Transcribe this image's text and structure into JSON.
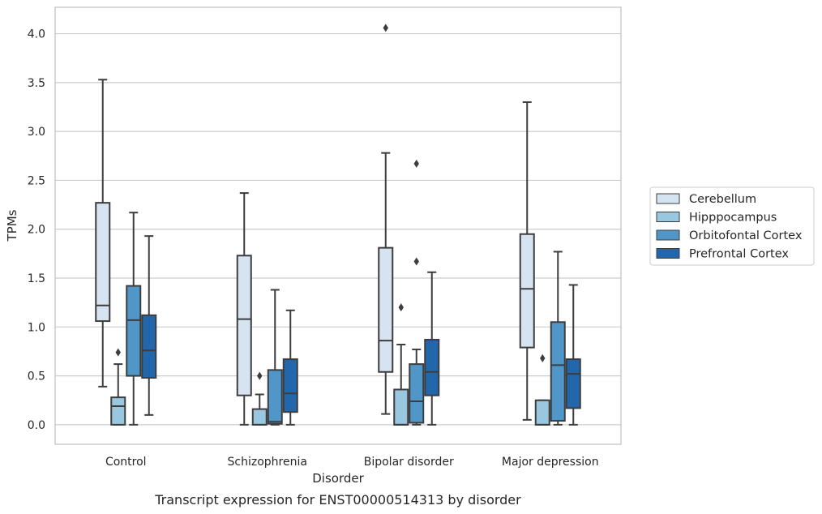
{
  "chart_data": {
    "type": "box",
    "title": "",
    "caption": "Transcript expression for ENST00000514313 by disorder",
    "xlabel": "Disorder",
    "ylabel": "TPMs",
    "ylim": [
      -0.2,
      4.27
    ],
    "yticks": [
      "0.0",
      "0.5",
      "1.0",
      "1.5",
      "2.0",
      "2.5",
      "3.0",
      "3.5",
      "4.0"
    ],
    "grid": "horizontal",
    "legend_position": "right",
    "categories": [
      "Control",
      "Schizophrenia",
      "Bipolar disorder",
      "Major depression"
    ],
    "series": [
      {
        "name": "Cerebellum",
        "color": "#d6e4f2",
        "boxes": [
          {
            "whislo": 0.39,
            "q1": 1.06,
            "med": 1.22,
            "q3": 2.27,
            "whishi": 3.53,
            "fliers": []
          },
          {
            "whislo": 0.0,
            "q1": 0.3,
            "med": 1.08,
            "q3": 1.73,
            "whishi": 2.37,
            "fliers": []
          },
          {
            "whislo": 0.11,
            "q1": 0.54,
            "med": 0.86,
            "q3": 1.81,
            "whishi": 2.78,
            "fliers": [
              4.06
            ]
          },
          {
            "whislo": 0.05,
            "q1": 0.79,
            "med": 1.39,
            "q3": 1.95,
            "whishi": 3.3,
            "fliers": []
          }
        ]
      },
      {
        "name": "Hipppocampus",
        "color": "#9ac7e0",
        "boxes": [
          {
            "whislo": 0.0,
            "q1": 0.0,
            "med": 0.19,
            "q3": 0.28,
            "whishi": 0.62,
            "fliers": [
              0.74
            ]
          },
          {
            "whislo": 0.0,
            "q1": 0.0,
            "med": 0.0,
            "q3": 0.16,
            "whishi": 0.31,
            "fliers": [
              0.5
            ]
          },
          {
            "whislo": 0.0,
            "q1": 0.0,
            "med": 0.0,
            "q3": 0.36,
            "whishi": 0.82,
            "fliers": [
              1.2
            ]
          },
          {
            "whislo": 0.0,
            "q1": 0.0,
            "med": 0.0,
            "q3": 0.25,
            "whishi": 0.25,
            "fliers": [
              0.68
            ]
          }
        ]
      },
      {
        "name": "Orbitofontal Cortex",
        "color": "#5096c8",
        "boxes": [
          {
            "whislo": 0.0,
            "q1": 0.5,
            "med": 1.07,
            "q3": 1.42,
            "whishi": 2.17,
            "fliers": []
          },
          {
            "whislo": 0.0,
            "q1": 0.01,
            "med": 0.03,
            "q3": 0.56,
            "whishi": 1.38,
            "fliers": []
          },
          {
            "whislo": 0.0,
            "q1": 0.02,
            "med": 0.24,
            "q3": 0.62,
            "whishi": 0.77,
            "fliers": [
              1.67,
              2.67
            ]
          },
          {
            "whislo": 0.0,
            "q1": 0.04,
            "med": 0.61,
            "q3": 1.05,
            "whishi": 1.77,
            "fliers": []
          }
        ]
      },
      {
        "name": "Prefrontal Cortex",
        "color": "#2266ac",
        "boxes": [
          {
            "whislo": 0.1,
            "q1": 0.48,
            "med": 0.76,
            "q3": 1.12,
            "whishi": 1.93,
            "fliers": []
          },
          {
            "whislo": 0.0,
            "q1": 0.13,
            "med": 0.32,
            "q3": 0.67,
            "whishi": 1.17,
            "fliers": []
          },
          {
            "whislo": 0.0,
            "q1": 0.3,
            "med": 0.54,
            "q3": 0.87,
            "whishi": 1.56,
            "fliers": []
          },
          {
            "whislo": 0.0,
            "q1": 0.17,
            "med": 0.52,
            "q3": 0.67,
            "whishi": 1.43,
            "fliers": []
          }
        ]
      }
    ]
  }
}
